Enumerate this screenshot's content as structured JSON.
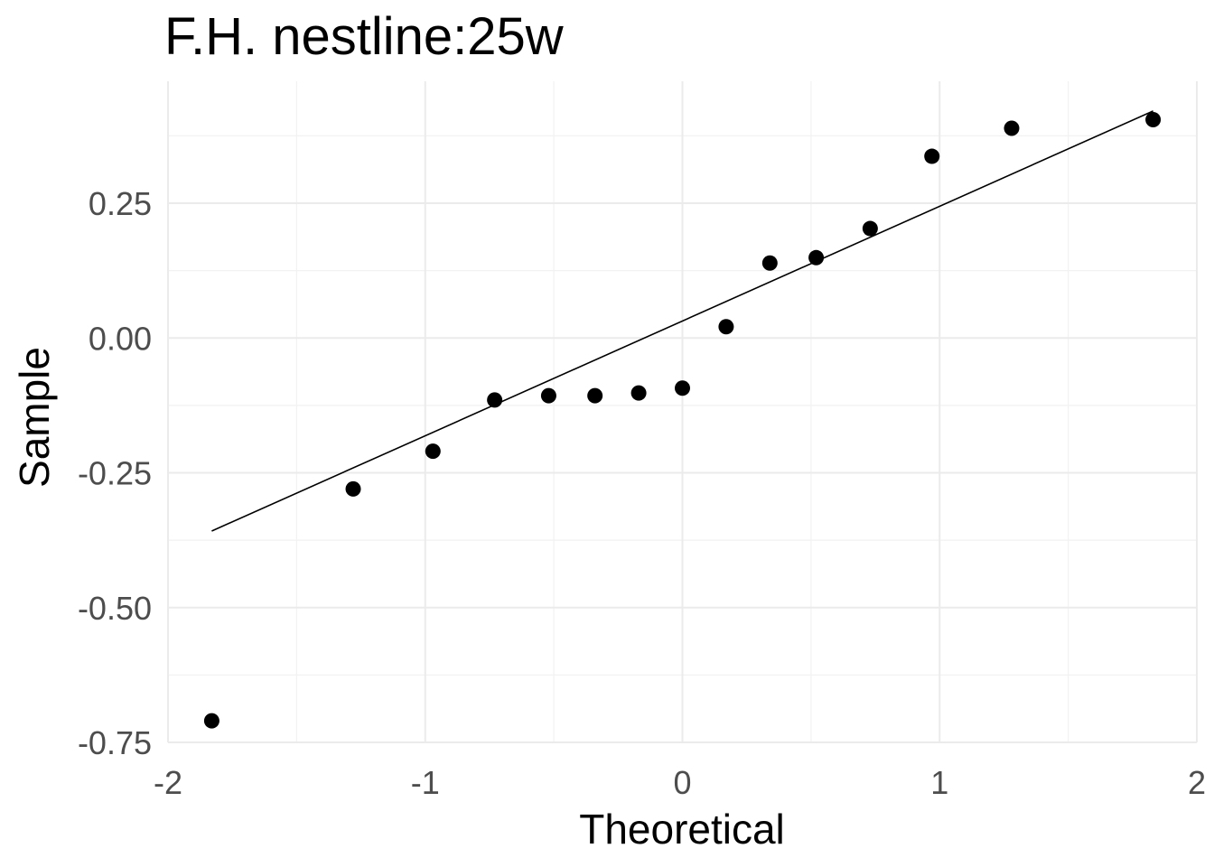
{
  "chart_data": {
    "type": "scatter",
    "title": "F.H. nestline:25w",
    "xlabel": "Theoretical",
    "ylabel": "Sample",
    "xlim": [
      -2,
      2
    ],
    "ylim": [
      -0.75,
      0.4
    ],
    "x_ticks": [
      -2,
      -1,
      0,
      1,
      2
    ],
    "x_tick_labels": [
      "-2",
      "-1",
      "0",
      "1",
      "2"
    ],
    "y_ticks": [
      -0.75,
      -0.5,
      -0.25,
      0.0,
      0.25
    ],
    "y_tick_labels": [
      "-0.75",
      "-0.50",
      "-0.25",
      "0.00",
      "0.25"
    ],
    "grid": true,
    "legend": "none",
    "point_color": "#000000",
    "line_color": "#000000",
    "points": [
      {
        "x": -1.83,
        "y": -0.71
      },
      {
        "x": -1.28,
        "y": -0.28
      },
      {
        "x": -0.97,
        "y": -0.21
      },
      {
        "x": -0.73,
        "y": -0.115
      },
      {
        "x": -0.52,
        "y": -0.107
      },
      {
        "x": -0.34,
        "y": -0.107
      },
      {
        "x": -0.17,
        "y": -0.102
      },
      {
        "x": 0.0,
        "y": -0.093
      },
      {
        "x": 0.17,
        "y": 0.021
      },
      {
        "x": 0.34,
        "y": 0.139
      },
      {
        "x": 0.52,
        "y": 0.149
      },
      {
        "x": 0.73,
        "y": 0.203
      },
      {
        "x": 0.97,
        "y": 0.337
      },
      {
        "x": 1.28,
        "y": 0.389
      },
      {
        "x": 1.83,
        "y": 0.405
      }
    ],
    "reference_line": {
      "x": [
        -1.83,
        1.83
      ],
      "y": [
        -0.358,
        0.421
      ]
    }
  }
}
